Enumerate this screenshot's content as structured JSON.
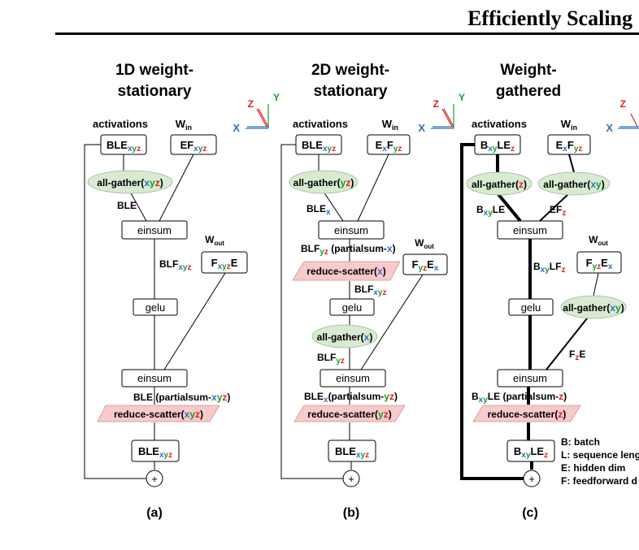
{
  "header": {
    "title": "Efficiently Scaling"
  },
  "colors": {
    "x": "#2f6fc1",
    "y": "#1a9a2a",
    "z": "#e02020",
    "gather_fill": "#d8ead0",
    "scatter_fill": "#f8caca"
  },
  "panels": [
    {
      "title_line1": "1D weight-",
      "title_line2": "stationary",
      "caption": "(a)",
      "activations_label": "activations",
      "w_in_label": "W",
      "w_in_sub": "in",
      "w_out_label": "W",
      "w_out_sub": "out",
      "act_box": {
        "main": "BLE",
        "sub": "xyz"
      },
      "win_box": {
        "main": "EF",
        "sub": "xyz"
      },
      "wout_box": {
        "p1": "F",
        "s1": "xyz",
        "p2": "E"
      },
      "gather": {
        "op": "all-gather(",
        "arg": "xyz",
        "close": ")"
      },
      "edge_ble": "BLE",
      "einsum1": "einsum",
      "edge_blf": {
        "main": "BLF",
        "sub": "xyz"
      },
      "gelu": "gelu",
      "einsum2": "einsum",
      "partial": {
        "pre": "BLE (partialsum-",
        "arg": "xyz",
        "close": ")"
      },
      "scatter": {
        "op": "reduce-scatter(",
        "arg": "xyz",
        "close": ")"
      },
      "out_box": {
        "main": "BLE",
        "sub": "xyz"
      },
      "plus": "+"
    },
    {
      "title_line1": "2D weight-",
      "title_line2": "stationary",
      "caption": "(b)",
      "activations_label": "activations",
      "w_in_label": "W",
      "w_in_sub": "in",
      "w_out_label": "W",
      "w_out_sub": "out",
      "act_box": {
        "main": "BLE",
        "sub": "xyz"
      },
      "win_box": {
        "p1": "E",
        "s1": "x",
        "p2": "F",
        "s2": "yz"
      },
      "wout_box": {
        "p1": "F",
        "s1": "yz",
        "p2": "E",
        "s2": "x"
      },
      "gather1": {
        "op": "all-gather(",
        "arg": "yz",
        "close": ")"
      },
      "edge_blex": {
        "main": "BLE",
        "sub": "x"
      },
      "einsum1": "einsum",
      "partial1": {
        "pre": "BLF",
        "sub": "yz",
        "mid": " (partialsum-",
        "arg": "x",
        "close": ")"
      },
      "scatter1": {
        "op": "reduce-scatter(",
        "arg": "x",
        "close": ")"
      },
      "edge_blfxyz": {
        "main": "BLF",
        "sub": "xyz"
      },
      "gelu": "gelu",
      "gather2": {
        "op": "all-gather(",
        "arg": "x",
        "close": ")"
      },
      "edge_blfyz": {
        "main": "BLF",
        "sub": "yz"
      },
      "einsum2": "einsum",
      "partial2": {
        "pre": "BLE",
        "sub": "x",
        "mid": "(partialsum-",
        "arg": "yz",
        "close": ")"
      },
      "scatter2": {
        "op": "reduce-scatter(",
        "arg": "yz",
        "close": ")"
      },
      "out_box": {
        "main": "BLE",
        "sub": "xyz"
      },
      "plus": "+"
    },
    {
      "title_line1": "Weight-",
      "title_line2": "gathered",
      "caption": "(c)",
      "activations_label": "activations",
      "w_in_label": "W",
      "w_in_sub": "in",
      "w_out_label": "W",
      "w_out_sub": "out",
      "act_box": {
        "p1": "B",
        "s1": "xy",
        "p2": "LE",
        "s2": "z"
      },
      "win_box": {
        "p1": "E",
        "s1": "x",
        "p2": "F",
        "s2": "yz"
      },
      "wout_box": {
        "p1": "F",
        "s1": "yz",
        "p2": "E",
        "s2": "x"
      },
      "gather_z": {
        "op": "all-gather(",
        "arg": "z",
        "close": ")"
      },
      "gather_xy": {
        "op": "all-gather(",
        "arg": "xy",
        "close": ")"
      },
      "edge_bxyle": {
        "p1": "B",
        "s1": "xy",
        "p2": "LE"
      },
      "edge_efz": {
        "p1": "EF",
        "s1": "z"
      },
      "einsum1": "einsum",
      "edge_bxylfz": {
        "p1": "B",
        "s1": "xy",
        "p2": "LF",
        "s2": "z"
      },
      "gelu": "gelu",
      "gather_xy2": {
        "op": "all-gather(",
        "arg": "xy",
        "close": ")"
      },
      "edge_fze": {
        "p1": "F",
        "s1": "z",
        "p2": "E"
      },
      "einsum2": "einsum",
      "partial": {
        "p1": "B",
        "s1": "xy",
        "p2": "LE",
        "mid": " (partialsum-",
        "arg": "z",
        "close": ")"
      },
      "scatter": {
        "op": "reduce-scatter(",
        "arg": "z",
        "close": ")"
      },
      "out_box": {
        "p1": "B",
        "s1": "xy",
        "p2": "LE",
        "s2": "z"
      },
      "plus": "+"
    }
  ],
  "axes_icon": {
    "x": "X",
    "y": "Y",
    "z": "Z"
  },
  "legend": [
    "B: batch",
    "L: sequence leng",
    "E: hidden dim",
    "F: feedforward d"
  ]
}
